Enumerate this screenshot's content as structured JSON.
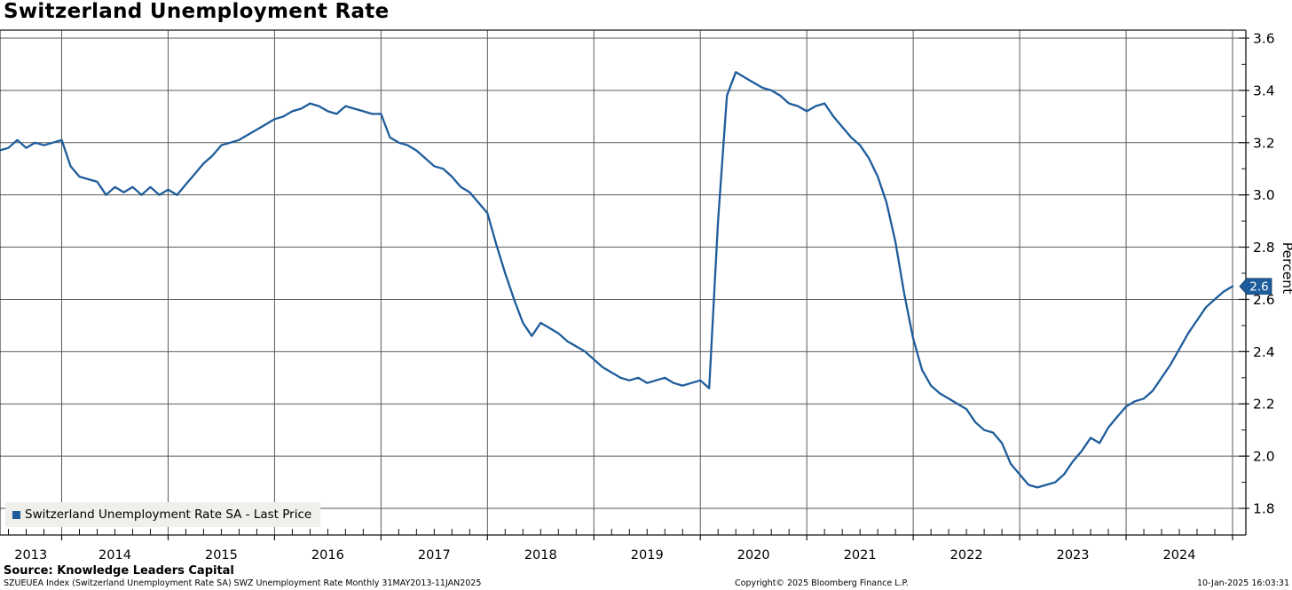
{
  "title": "Switzerland Unemployment Rate",
  "legend": {
    "label": "Switzerland Unemployment Rate SA - Last Price"
  },
  "source_line": "Source: Knowledge Leaders Capital",
  "footer": {
    "index_line": "SZUEUEA Index (Switzerland Unemployment Rate SA) SWZ Unemployment Rate  Monthly 31MAY2013-11JAN2025",
    "copyright": "Copyright© 2025 Bloomberg Finance L.P.",
    "timestamp": "10-Jan-2025 16:03:31"
  },
  "colors": {
    "line": "#1e5c9b",
    "grid": "#5a5a5a",
    "axis": "#111111",
    "legend_bg": "#f0efec",
    "tag_bg": "#1e5c9b",
    "tag_text": "#ffffff",
    "text": "#000000"
  },
  "chart_data": {
    "type": "line",
    "title": "Switzerland Unemployment Rate",
    "series_name": "Switzerland Unemployment Rate SA - Last Price",
    "ylabel": "Percent",
    "ylim": [
      1.8,
      3.6
    ],
    "y_major_step": 0.2,
    "y_minor_step": 0.1,
    "y_tick_labels": [
      "3.6",
      "3.4",
      "3.2",
      "3.0",
      "2.8",
      "2.6",
      "2.4",
      "2.2",
      "2.0",
      "1.8"
    ],
    "x_tick_labels": [
      "2013",
      "2014",
      "2015",
      "2016",
      "2017",
      "2018",
      "2019",
      "2020",
      "2021",
      "2022",
      "2023",
      "2024"
    ],
    "frequency": "monthly",
    "start": "2013-05",
    "end": "2025-01",
    "grid": true,
    "legend_position": "bottom-left",
    "last_price_tag": "2.6",
    "values": [
      3.16,
      3.17,
      3.18,
      3.21,
      3.18,
      3.2,
      3.19,
      3.2,
      3.21,
      3.11,
      3.07,
      3.06,
      3.05,
      3.0,
      3.03,
      3.01,
      3.03,
      3.0,
      3.03,
      3.0,
      3.02,
      3.0,
      3.04,
      3.08,
      3.12,
      3.15,
      3.19,
      3.2,
      3.21,
      3.23,
      3.25,
      3.27,
      3.29,
      3.3,
      3.32,
      3.33,
      3.35,
      3.34,
      3.32,
      3.31,
      3.34,
      3.33,
      3.32,
      3.31,
      3.31,
      3.22,
      3.2,
      3.19,
      3.17,
      3.14,
      3.11,
      3.1,
      3.07,
      3.03,
      3.01,
      2.97,
      2.93,
      2.81,
      2.7,
      2.6,
      2.51,
      2.46,
      2.51,
      2.49,
      2.47,
      2.44,
      2.42,
      2.4,
      2.37,
      2.34,
      2.32,
      2.3,
      2.29,
      2.3,
      2.28,
      2.29,
      2.3,
      2.28,
      2.27,
      2.28,
      2.29,
      2.26,
      2.9,
      3.38,
      3.47,
      3.45,
      3.43,
      3.41,
      3.4,
      3.38,
      3.35,
      3.34,
      3.32,
      3.34,
      3.35,
      3.3,
      3.26,
      3.22,
      3.19,
      3.14,
      3.07,
      2.97,
      2.82,
      2.62,
      2.45,
      2.33,
      2.27,
      2.24,
      2.22,
      2.2,
      2.18,
      2.13,
      2.1,
      2.09,
      2.05,
      1.97,
      1.93,
      1.89,
      1.88,
      1.89,
      1.9,
      1.93,
      1.98,
      2.02,
      2.07,
      2.05,
      2.11,
      2.15,
      2.19,
      2.21,
      2.22,
      2.25,
      2.3,
      2.35,
      2.41,
      2.47,
      2.52,
      2.57,
      2.6,
      2.63,
      2.65
    ]
  }
}
